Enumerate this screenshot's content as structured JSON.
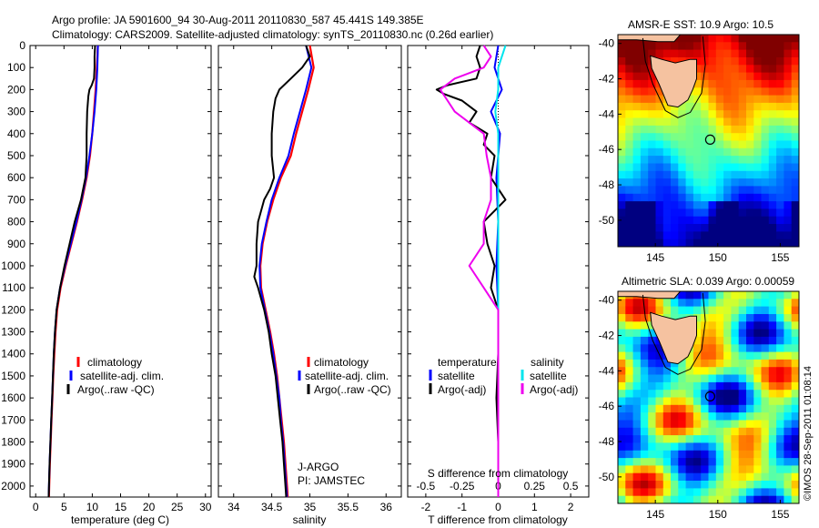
{
  "figure": {
    "title_line1": "Argo profile: JA 5901600_94 30-Aug-2011 20110830_587 45.441S 149.385E",
    "title_line2": "Climatology: CARS2009. Satellite-adjusted climatology: synTS_20110830.nc (0.26d earlier)",
    "side_stamp": "©IMOS 28-Sep-2011 01:08:14",
    "agency_line1": "J-ARGO",
    "agency_line2": "PI: JAMSTEC"
  },
  "colors": {
    "climatology": "#ff0000",
    "satellite": "#0000ff",
    "argo": "#000000",
    "salinity_satellite": "#00e5ee",
    "salinity_argo": "#ee00ee",
    "land": "#f5c2a0"
  },
  "chart_data": [
    {
      "type": "line",
      "panel": "temperature",
      "xlabel": "temperature (deg C)",
      "ylabel": "",
      "xlim": [
        -1,
        31
      ],
      "ylim": [
        2050,
        0
      ],
      "xticks": [
        0,
        5,
        10,
        15,
        20,
        25,
        30
      ],
      "yticks": [
        0,
        100,
        200,
        300,
        400,
        500,
        600,
        700,
        800,
        900,
        1000,
        1100,
        1200,
        1300,
        1400,
        1500,
        1600,
        1700,
        1800,
        1900,
        2000
      ],
      "legend": [
        "climatology",
        "satellite-adj. clim.",
        "Argo(..raw -QC)"
      ],
      "series": [
        {
          "name": "climatology",
          "depth": [
            0,
            100,
            200,
            300,
            400,
            500,
            600,
            700,
            800,
            900,
            1000,
            1100,
            1200,
            1300,
            1400,
            1500,
            1600,
            1700,
            1800,
            1900,
            2000,
            2050
          ],
          "values": [
            11.0,
            10.8,
            10.6,
            10.3,
            10.0,
            9.6,
            9.0,
            8.2,
            7.3,
            6.3,
            5.3,
            4.4,
            3.8,
            3.5,
            3.3,
            3.1,
            2.95,
            2.8,
            2.65,
            2.5,
            2.4,
            2.35
          ]
        },
        {
          "name": "satellite-adj. clim.",
          "depth": [
            0,
            100,
            200,
            300,
            400,
            500,
            600,
            700,
            800,
            900,
            1000,
            1100,
            1200,
            1300,
            1400,
            1500,
            1600,
            1700,
            1800,
            1900,
            2000,
            2050
          ],
          "values": [
            11.0,
            10.9,
            10.7,
            10.4,
            10.0,
            9.5,
            8.9,
            8.1,
            7.2,
            6.2,
            5.2,
            4.3,
            3.7,
            3.4,
            3.2,
            3.05,
            2.9,
            2.75,
            2.6,
            2.45,
            2.35,
            2.3
          ]
        },
        {
          "name": "Argo(..raw -QC)",
          "depth": [
            0,
            50,
            100,
            150,
            180,
            200,
            230,
            300,
            400,
            500,
            600,
            700,
            800,
            900,
            1000,
            1100,
            1200,
            1300,
            1400,
            1500,
            1600,
            1700,
            1800,
            1900,
            2000,
            2050
          ],
          "values": [
            10.5,
            10.4,
            10.4,
            10.3,
            9.9,
            9.5,
            9.3,
            9.1,
            9.0,
            9.0,
            8.8,
            8.0,
            6.9,
            6.0,
            5.1,
            4.3,
            3.7,
            3.4,
            3.2,
            3.05,
            2.9,
            2.75,
            2.6,
            2.45,
            2.35,
            2.3
          ]
        }
      ]
    },
    {
      "type": "line",
      "panel": "salinity",
      "xlabel": "salinity",
      "ylabel": "",
      "xlim": [
        33.8,
        36.2
      ],
      "ylim": [
        2050,
        0
      ],
      "xticks": [
        34,
        34.5,
        35,
        35.5,
        36
      ],
      "legend": [
        "climatology",
        "satellite-adj. clim.",
        "Argo(..raw -QC)"
      ],
      "series": [
        {
          "name": "climatology",
          "depth": [
            0,
            100,
            200,
            300,
            400,
            500,
            600,
            700,
            800,
            900,
            1000,
            1100,
            1200,
            1300,
            1400,
            1500,
            1600,
            1700,
            1800,
            1900,
            2000,
            2050
          ],
          "values": [
            35.0,
            35.05,
            34.98,
            34.9,
            34.82,
            34.75,
            34.62,
            34.52,
            34.44,
            34.38,
            34.35,
            34.36,
            34.42,
            34.48,
            34.53,
            34.57,
            34.6,
            34.63,
            34.66,
            34.68,
            34.7,
            34.71
          ]
        },
        {
          "name": "satellite-adj. clim.",
          "depth": [
            0,
            100,
            200,
            300,
            400,
            500,
            600,
            700,
            800,
            900,
            1000,
            1100,
            1200,
            1300,
            1400,
            1500,
            1600,
            1700,
            1800,
            1900,
            2000,
            2050
          ],
          "values": [
            34.95,
            35.02,
            34.95,
            34.87,
            34.79,
            34.72,
            34.6,
            34.5,
            34.43,
            34.37,
            34.34,
            34.35,
            34.41,
            34.47,
            34.52,
            34.56,
            34.6,
            34.62,
            34.65,
            34.67,
            34.69,
            34.7
          ]
        },
        {
          "name": "Argo(..raw -QC)",
          "depth": [
            0,
            50,
            100,
            150,
            200,
            240,
            300,
            400,
            500,
            600,
            650,
            700,
            800,
            900,
            1000,
            1050,
            1100,
            1200,
            1300,
            1400,
            1500,
            1600,
            1700,
            1800,
            1900,
            2000,
            2050
          ],
          "values": [
            34.95,
            35.0,
            34.9,
            34.75,
            34.6,
            34.55,
            34.52,
            34.5,
            34.5,
            34.53,
            34.48,
            34.4,
            34.32,
            34.3,
            34.3,
            34.27,
            34.32,
            34.4,
            34.46,
            34.5,
            34.55,
            34.58,
            34.61,
            34.64,
            34.66,
            34.68,
            34.69
          ]
        }
      ]
    },
    {
      "type": "line",
      "panel": "difference",
      "xlabel": "T difference from climatology",
      "xlabel_top": "S difference from climatology",
      "ylabel": "",
      "xlim": [
        -2.5,
        2.5
      ],
      "ylim": [
        2050,
        0
      ],
      "xticks": [
        -2,
        -1,
        0,
        1,
        2
      ],
      "xticks_s": [
        -0.5,
        -0.25,
        0,
        0.25,
        0.5
      ],
      "legend_t_title": "temperature",
      "legend_s_title": "salinity",
      "legend": [
        "satellite",
        "Argo(-adj)",
        "satellite",
        "Argo(-adj)"
      ],
      "series": [
        {
          "name": "temperature satellite",
          "depth": [
            0,
            100,
            200,
            300,
            400,
            500,
            600,
            800,
            1000,
            1200,
            1400,
            1600,
            1800,
            2050
          ],
          "values": [
            0.0,
            -0.1,
            0.1,
            -0.2,
            0.05,
            0.0,
            -0.05,
            0.0,
            -0.05,
            0.0,
            0.0,
            0.0,
            0.0,
            0.0
          ]
        },
        {
          "name": "temperature Argo(-adj)",
          "depth": [
            0,
            50,
            100,
            150,
            180,
            200,
            220,
            250,
            300,
            350,
            400,
            450,
            500,
            600,
            700,
            800,
            900,
            1000,
            1100,
            1200,
            1400,
            1600,
            1800,
            2050
          ],
          "values": [
            -0.5,
            -0.6,
            -0.5,
            -0.6,
            -1.4,
            -1.7,
            -1.5,
            -1.0,
            -0.6,
            -0.8,
            -0.3,
            -0.4,
            -0.1,
            -0.2,
            0.2,
            -0.4,
            -0.3,
            -0.1,
            -0.2,
            0.0,
            0.0,
            -0.05,
            0.0,
            0.0
          ]
        },
        {
          "name": "salinity satellite",
          "depth": [
            0,
            100,
            200,
            300,
            400,
            600,
            800,
            1000,
            1200,
            1400,
            1600,
            1800,
            2050
          ],
          "values": [
            0.05,
            0.0,
            0.0,
            -0.02,
            0.0,
            0.0,
            0.0,
            0.0,
            0.0,
            0.0,
            0.0,
            0.0,
            0.0
          ]
        },
        {
          "name": "salinity Argo(-adj)",
          "depth": [
            0,
            50,
            100,
            150,
            200,
            250,
            300,
            400,
            500,
            600,
            700,
            800,
            900,
            1000,
            1100,
            1200,
            1400,
            1600,
            1800,
            2050
          ],
          "values": [
            -0.1,
            -0.05,
            -0.1,
            -0.3,
            -0.4,
            -0.35,
            -0.3,
            -0.1,
            -0.08,
            -0.05,
            -0.05,
            -0.1,
            -0.1,
            -0.2,
            -0.1,
            0.0,
            0.0,
            0.0,
            0.0,
            0.0
          ]
        }
      ]
    },
    {
      "type": "heatmap",
      "panel": "sst_map",
      "title": "AMSR-E SST: 10.9 Argo: 10.5",
      "xlim": [
        142,
        156.5
      ],
      "ylim": [
        -51.5,
        -39.5
      ],
      "xticks": [
        145,
        150,
        155
      ],
      "yticks": [
        -40,
        -42,
        -44,
        -46,
        -48,
        -50
      ],
      "marker": {
        "lon": 149.385,
        "lat": -45.441
      }
    },
    {
      "type": "heatmap",
      "panel": "sla_map",
      "title": "Altimetric SLA: 0.039 Argo: 0.00059",
      "xlim": [
        142,
        156.5
      ],
      "ylim": [
        -51.5,
        -39.5
      ],
      "xticks": [
        145,
        150,
        155
      ],
      "yticks": [
        -40,
        -42,
        -44,
        -46,
        -48,
        -50
      ],
      "marker": {
        "lon": 149.385,
        "lat": -45.441
      }
    }
  ]
}
